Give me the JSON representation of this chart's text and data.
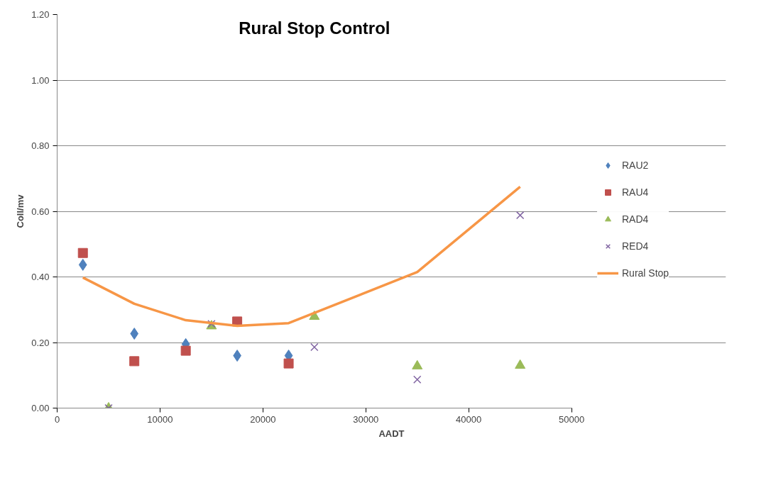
{
  "chart_data": {
    "type": "scatter",
    "title": "Rural Stop Control",
    "xlabel": "AADT",
    "ylabel": "Coll/mv",
    "xlim": [
      0,
      50000
    ],
    "xticks": [
      0,
      10000,
      20000,
      30000,
      40000,
      50000
    ],
    "ylim": [
      0,
      1.2
    ],
    "yticks": [
      {
        "value": 0,
        "label": "0.00"
      },
      {
        "value": 0.2,
        "label": "0.20"
      },
      {
        "value": 0.4,
        "label": "0.40"
      },
      {
        "value": 0.6,
        "label": "0.60"
      },
      {
        "value": 0.8,
        "label": "0.80"
      },
      {
        "value": 1.0,
        "label": "1.00"
      },
      {
        "value": 1.2,
        "label": "1.20"
      }
    ],
    "grid": "y",
    "legend": "right",
    "series": [
      {
        "name": "RAU2",
        "color": "#4f81bd",
        "marker": "diamond",
        "x": [
          2500,
          7500,
          12500,
          17500,
          22500
        ],
        "values": [
          0.437,
          0.227,
          0.195,
          0.16,
          0.16
        ]
      },
      {
        "name": "RAU4",
        "color": "#c0504d",
        "marker": "square",
        "x": [
          2500,
          7500,
          12500,
          17500,
          22500
        ],
        "values": [
          0.473,
          0.143,
          0.175,
          0.264,
          0.136
        ]
      },
      {
        "name": "RAD4",
        "color": "#9bbb59",
        "marker": "triangle",
        "x": [
          5000,
          15000,
          25000,
          35000,
          45000
        ],
        "values": [
          0,
          0.25,
          0.279,
          0.128,
          0.13
        ]
      },
      {
        "name": "RED4",
        "color": "#8064a2",
        "marker": "cross",
        "x": [
          5000,
          15000,
          25000,
          35000,
          45000
        ],
        "values": [
          0,
          0.257,
          0.186,
          0.087,
          0.588
        ]
      },
      {
        "name": "Rural Stop",
        "color": "#f79646",
        "type": "line",
        "marker": "none",
        "x": [
          2500,
          7500,
          12500,
          17500,
          22500,
          35000,
          45000
        ],
        "values": [
          0.398,
          0.318,
          0.268,
          0.251,
          0.259,
          0.415,
          0.675
        ]
      }
    ]
  }
}
